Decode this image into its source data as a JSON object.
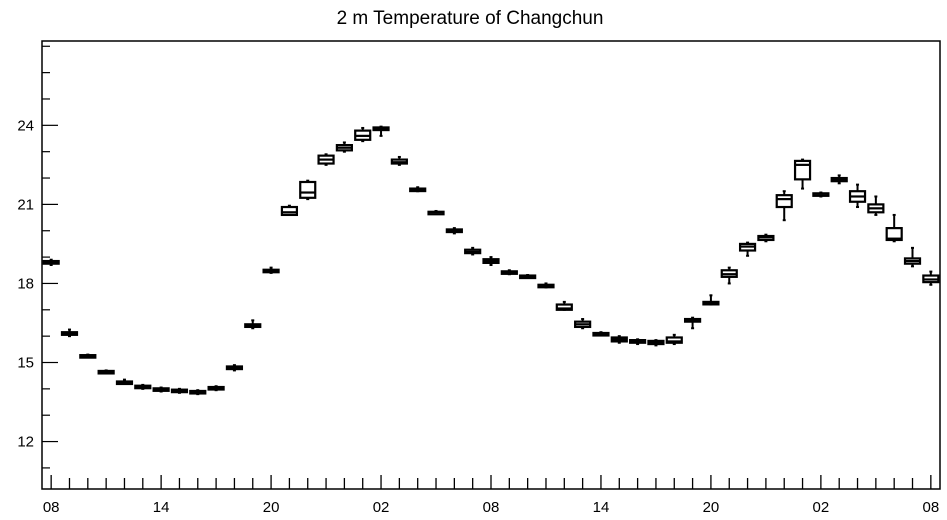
{
  "chart_data": {
    "type": "box",
    "title": "2 m Temperature of Changchun",
    "xlabel": "",
    "ylabel": "",
    "ylim": [
      10.2,
      27.2
    ],
    "xlim": [
      -0.5,
      48.5
    ],
    "yticks": [
      12,
      15,
      18,
      21,
      24
    ],
    "ytick_labels": [
      "12",
      "15",
      "18",
      "21",
      "24"
    ],
    "xticks": [
      0,
      6,
      12,
      18,
      24,
      30,
      36,
      42,
      48
    ],
    "xtick_labels": [
      "08",
      "14",
      "20",
      "02",
      "08",
      "14",
      "20",
      "02",
      "08"
    ],
    "grid": false,
    "legend": "none",
    "color": "#000000",
    "boxes": [
      {
        "x": 0,
        "min": 18.7,
        "q1": 18.75,
        "median": 18.8,
        "q3": 18.85,
        "max": 18.9
      },
      {
        "x": 1,
        "min": 16.0,
        "q1": 16.05,
        "median": 16.1,
        "q3": 16.15,
        "max": 16.25
      },
      {
        "x": 2,
        "min": 15.2,
        "q1": 15.22,
        "median": 15.25,
        "q3": 15.28,
        "max": 15.3
      },
      {
        "x": 3,
        "min": 14.6,
        "q1": 14.62,
        "median": 14.65,
        "q3": 14.68,
        "max": 14.7
      },
      {
        "x": 4,
        "min": 14.2,
        "q1": 14.22,
        "median": 14.25,
        "q3": 14.28,
        "max": 14.35
      },
      {
        "x": 5,
        "min": 14.0,
        "q1": 14.05,
        "median": 14.08,
        "q3": 14.12,
        "max": 14.15
      },
      {
        "x": 6,
        "min": 13.9,
        "q1": 13.95,
        "median": 13.98,
        "q3": 14.02,
        "max": 14.05
      },
      {
        "x": 7,
        "min": 13.85,
        "q1": 13.9,
        "median": 13.93,
        "q3": 13.97,
        "max": 14.0
      },
      {
        "x": 8,
        "min": 13.8,
        "q1": 13.85,
        "median": 13.88,
        "q3": 13.92,
        "max": 13.95
      },
      {
        "x": 9,
        "min": 13.95,
        "q1": 14.0,
        "median": 14.03,
        "q3": 14.07,
        "max": 14.1
      },
      {
        "x": 10,
        "min": 14.7,
        "q1": 14.75,
        "median": 14.78,
        "q3": 14.85,
        "max": 14.9
      },
      {
        "x": 11,
        "min": 16.3,
        "q1": 16.35,
        "median": 16.4,
        "q3": 16.45,
        "max": 16.6
      },
      {
        "x": 12,
        "min": 18.4,
        "q1": 18.45,
        "median": 18.48,
        "q3": 18.52,
        "max": 18.6
      },
      {
        "x": 13,
        "min": 20.6,
        "q1": 20.6,
        "median": 20.7,
        "q3": 20.9,
        "max": 20.95
      },
      {
        "x": 14,
        "min": 21.2,
        "q1": 21.25,
        "median": 21.45,
        "q3": 21.85,
        "max": 21.9
      },
      {
        "x": 15,
        "min": 22.5,
        "q1": 22.55,
        "median": 22.7,
        "q3": 22.85,
        "max": 22.9
      },
      {
        "x": 16,
        "min": 23.0,
        "q1": 23.05,
        "median": 23.15,
        "q3": 23.25,
        "max": 23.35
      },
      {
        "x": 17,
        "min": 23.4,
        "q1": 23.45,
        "median": 23.6,
        "q3": 23.8,
        "max": 23.9
      },
      {
        "x": 18,
        "min": 23.6,
        "q1": 23.82,
        "median": 23.88,
        "q3": 23.92,
        "max": 23.95
      },
      {
        "x": 19,
        "min": 22.5,
        "q1": 22.55,
        "median": 22.6,
        "q3": 22.7,
        "max": 22.8
      },
      {
        "x": 20,
        "min": 21.5,
        "q1": 21.52,
        "median": 21.55,
        "q3": 21.6,
        "max": 21.65
      },
      {
        "x": 21,
        "min": 20.65,
        "q1": 20.68,
        "median": 20.7,
        "q3": 20.72,
        "max": 20.75
      },
      {
        "x": 22,
        "min": 19.9,
        "q1": 19.95,
        "median": 20.0,
        "q3": 20.05,
        "max": 20.1
      },
      {
        "x": 23,
        "min": 19.1,
        "q1": 19.15,
        "median": 19.2,
        "q3": 19.28,
        "max": 19.35
      },
      {
        "x": 24,
        "min": 18.7,
        "q1": 18.78,
        "median": 18.85,
        "q3": 18.92,
        "max": 19.0
      },
      {
        "x": 25,
        "min": 18.35,
        "q1": 18.38,
        "median": 18.42,
        "q3": 18.46,
        "max": 18.5
      },
      {
        "x": 26,
        "min": 18.25,
        "q1": 18.27,
        "median": 18.28,
        "q3": 18.3,
        "max": 18.32
      },
      {
        "x": 27,
        "min": 17.85,
        "q1": 17.9,
        "median": 17.92,
        "q3": 17.95,
        "max": 18.0
      },
      {
        "x": 28,
        "min": 17.0,
        "q1": 17.0,
        "median": 17.05,
        "q3": 17.2,
        "max": 17.3
      },
      {
        "x": 29,
        "min": 16.3,
        "q1": 16.35,
        "median": 16.45,
        "q3": 16.55,
        "max": 16.65
      },
      {
        "x": 30,
        "min": 16.05,
        "q1": 16.08,
        "median": 16.1,
        "q3": 16.12,
        "max": 16.15
      },
      {
        "x": 31,
        "min": 15.75,
        "q1": 15.8,
        "median": 15.87,
        "q3": 15.95,
        "max": 16.0
      },
      {
        "x": 32,
        "min": 15.7,
        "q1": 15.75,
        "median": 15.8,
        "q3": 15.85,
        "max": 15.88
      },
      {
        "x": 33,
        "min": 15.65,
        "q1": 15.7,
        "median": 15.75,
        "q3": 15.82,
        "max": 15.85
      },
      {
        "x": 34,
        "min": 15.7,
        "q1": 15.75,
        "median": 15.8,
        "q3": 15.95,
        "max": 16.05
      },
      {
        "x": 35,
        "min": 16.3,
        "q1": 16.55,
        "median": 16.62,
        "q3": 16.65,
        "max": 16.7
      },
      {
        "x": 36,
        "min": 17.2,
        "q1": 17.22,
        "median": 17.25,
        "q3": 17.3,
        "max": 17.55
      },
      {
        "x": 37,
        "min": 18.0,
        "q1": 18.25,
        "median": 18.35,
        "q3": 18.5,
        "max": 18.6
      },
      {
        "x": 38,
        "min": 19.05,
        "q1": 19.25,
        "median": 19.4,
        "q3": 19.5,
        "max": 19.55
      },
      {
        "x": 39,
        "min": 19.6,
        "q1": 19.65,
        "median": 19.75,
        "q3": 19.8,
        "max": 19.85
      },
      {
        "x": 40,
        "min": 20.4,
        "q1": 20.9,
        "median": 21.2,
        "q3": 21.35,
        "max": 21.5
      },
      {
        "x": 41,
        "min": 21.6,
        "q1": 21.95,
        "median": 22.5,
        "q3": 22.65,
        "max": 22.7
      },
      {
        "x": 42,
        "min": 21.3,
        "q1": 21.35,
        "median": 21.4,
        "q3": 21.42,
        "max": 21.45
      },
      {
        "x": 43,
        "min": 21.8,
        "q1": 21.88,
        "median": 21.95,
        "q3": 22.0,
        "max": 22.1
      },
      {
        "x": 44,
        "min": 20.9,
        "q1": 21.1,
        "median": 21.3,
        "q3": 21.5,
        "max": 21.75
      },
      {
        "x": 45,
        "min": 20.6,
        "q1": 20.7,
        "median": 20.85,
        "q3": 21.0,
        "max": 21.3
      },
      {
        "x": 46,
        "min": 19.6,
        "q1": 19.65,
        "median": 19.7,
        "q3": 20.1,
        "max": 20.6
      },
      {
        "x": 47,
        "min": 18.65,
        "q1": 18.75,
        "median": 18.85,
        "q3": 18.95,
        "max": 19.35
      },
      {
        "x": 48,
        "min": 17.95,
        "q1": 18.05,
        "median": 18.15,
        "q3": 18.3,
        "max": 18.45
      }
    ]
  }
}
